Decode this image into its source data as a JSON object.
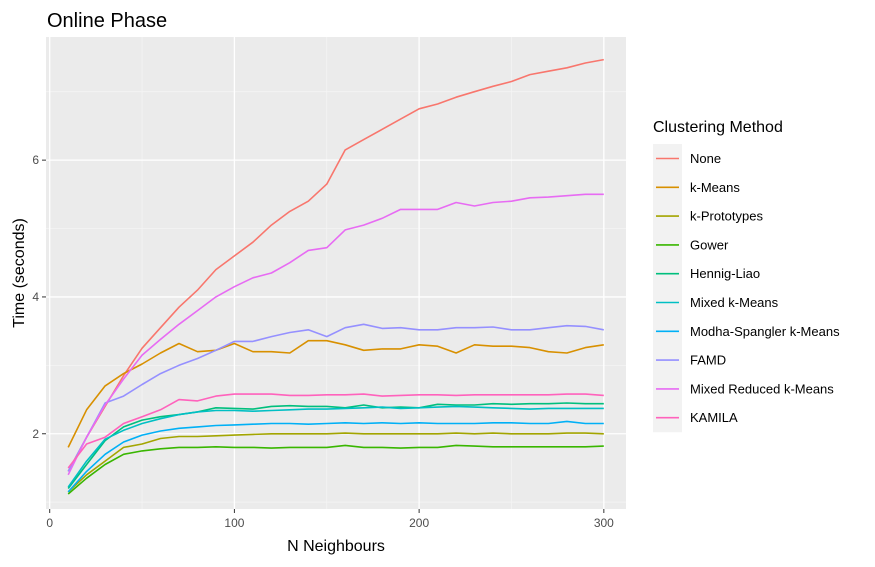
{
  "chart_data": {
    "type": "line",
    "title": "Online Phase",
    "xlabel": "N Neighbours",
    "ylabel": "Time (seconds)",
    "xlim": [
      -2,
      312
    ],
    "ylim": [
      0.9,
      7.8
    ],
    "x_ticks": [
      0,
      100,
      200,
      300
    ],
    "y_ticks": [
      2,
      4,
      6
    ],
    "grid": true,
    "legend_position": "right",
    "legend_title": "Clustering Method",
    "x": [
      10,
      20,
      30,
      40,
      50,
      60,
      70,
      80,
      90,
      100,
      110,
      120,
      130,
      140,
      150,
      160,
      170,
      180,
      190,
      200,
      210,
      220,
      230,
      240,
      250,
      260,
      270,
      280,
      290,
      300
    ],
    "series": [
      {
        "name": "None",
        "color": "#F8766D",
        "values": [
          1.45,
          1.95,
          2.4,
          2.85,
          3.25,
          3.55,
          3.85,
          4.1,
          4.4,
          4.6,
          4.8,
          5.05,
          5.25,
          5.4,
          5.65,
          6.15,
          6.3,
          6.45,
          6.6,
          6.75,
          6.82,
          6.92,
          7.0,
          7.08,
          7.15,
          7.25,
          7.3,
          7.35,
          7.42,
          7.47
        ]
      },
      {
        "name": "k-Means",
        "color": "#D89000",
        "values": [
          1.8,
          2.35,
          2.7,
          2.88,
          3.02,
          3.18,
          3.32,
          3.2,
          3.22,
          3.32,
          3.2,
          3.2,
          3.18,
          3.36,
          3.36,
          3.3,
          3.22,
          3.24,
          3.24,
          3.3,
          3.28,
          3.18,
          3.3,
          3.28,
          3.28,
          3.26,
          3.2,
          3.18,
          3.26,
          3.3
        ]
      },
      {
        "name": "k-Prototypes",
        "color": "#A3A500",
        "values": [
          1.15,
          1.4,
          1.6,
          1.8,
          1.85,
          1.93,
          1.96,
          1.96,
          1.97,
          1.98,
          1.99,
          2.0,
          2.0,
          2.0,
          2.0,
          2.01,
          2.0,
          2.0,
          2.0,
          2.0,
          2.0,
          2.01,
          2.0,
          2.01,
          2.0,
          2.0,
          2.0,
          2.01,
          2.01,
          2.0
        ]
      },
      {
        "name": "Gower",
        "color": "#39B600",
        "values": [
          1.12,
          1.35,
          1.55,
          1.7,
          1.75,
          1.78,
          1.8,
          1.8,
          1.81,
          1.8,
          1.8,
          1.79,
          1.8,
          1.8,
          1.8,
          1.83,
          1.8,
          1.8,
          1.79,
          1.8,
          1.8,
          1.83,
          1.82,
          1.81,
          1.81,
          1.81,
          1.81,
          1.81,
          1.81,
          1.82
        ]
      },
      {
        "name": "Hennig-Liao",
        "color": "#00BF7D",
        "values": [
          1.2,
          1.55,
          1.9,
          2.1,
          2.2,
          2.25,
          2.28,
          2.32,
          2.38,
          2.37,
          2.36,
          2.4,
          2.41,
          2.4,
          2.4,
          2.38,
          2.42,
          2.38,
          2.39,
          2.38,
          2.43,
          2.42,
          2.42,
          2.44,
          2.43,
          2.44,
          2.44,
          2.45,
          2.44,
          2.44
        ]
      },
      {
        "name": "Mixed k-Means",
        "color": "#00BFC4",
        "values": [
          1.22,
          1.6,
          1.92,
          2.05,
          2.15,
          2.22,
          2.28,
          2.32,
          2.34,
          2.34,
          2.33,
          2.34,
          2.35,
          2.36,
          2.36,
          2.37,
          2.38,
          2.39,
          2.37,
          2.38,
          2.39,
          2.4,
          2.39,
          2.38,
          2.37,
          2.36,
          2.37,
          2.37,
          2.37,
          2.37
        ]
      },
      {
        "name": "Modha-Spangler k-Means",
        "color": "#00B0F6",
        "values": [
          1.15,
          1.45,
          1.7,
          1.88,
          1.98,
          2.04,
          2.08,
          2.1,
          2.12,
          2.13,
          2.14,
          2.15,
          2.15,
          2.14,
          2.15,
          2.16,
          2.15,
          2.16,
          2.15,
          2.16,
          2.15,
          2.15,
          2.15,
          2.16,
          2.16,
          2.15,
          2.15,
          2.18,
          2.15,
          2.15
        ]
      },
      {
        "name": "FAMD",
        "color": "#9590FF",
        "values": [
          1.45,
          1.95,
          2.45,
          2.55,
          2.72,
          2.88,
          3.0,
          3.1,
          3.22,
          3.35,
          3.35,
          3.42,
          3.48,
          3.52,
          3.42,
          3.55,
          3.6,
          3.54,
          3.55,
          3.52,
          3.52,
          3.55,
          3.55,
          3.56,
          3.52,
          3.52,
          3.55,
          3.58,
          3.57,
          3.52
        ]
      },
      {
        "name": "Mixed Reduced k-Means",
        "color": "#E76BF3",
        "values": [
          1.4,
          1.95,
          2.42,
          2.8,
          3.15,
          3.38,
          3.6,
          3.8,
          4.0,
          4.15,
          4.28,
          4.35,
          4.5,
          4.68,
          4.72,
          4.98,
          5.05,
          5.15,
          5.28,
          5.28,
          5.28,
          5.38,
          5.33,
          5.38,
          5.4,
          5.45,
          5.46,
          5.48,
          5.5,
          5.5
        ]
      },
      {
        "name": "KAMILA",
        "color": "#FF62BC",
        "values": [
          1.5,
          1.85,
          1.95,
          2.15,
          2.25,
          2.35,
          2.5,
          2.48,
          2.55,
          2.58,
          2.58,
          2.58,
          2.56,
          2.56,
          2.57,
          2.57,
          2.58,
          2.55,
          2.56,
          2.57,
          2.57,
          2.56,
          2.57,
          2.57,
          2.57,
          2.57,
          2.57,
          2.58,
          2.58,
          2.56
        ]
      }
    ]
  }
}
